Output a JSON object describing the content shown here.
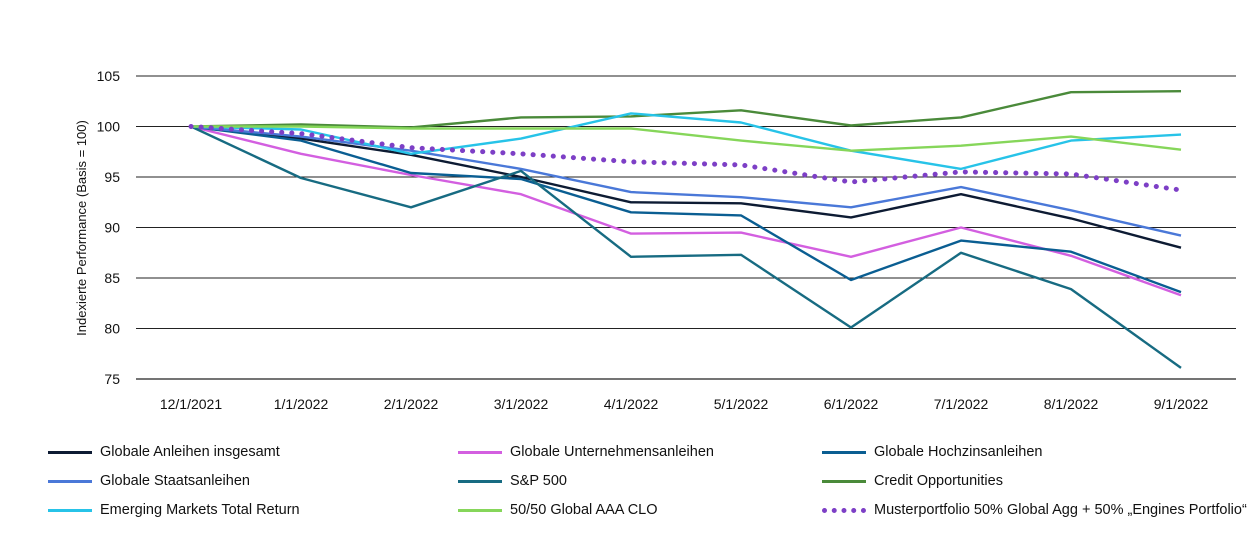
{
  "chart_data": {
    "type": "line",
    "x": [
      "12/1/2021",
      "1/1/2022",
      "2/1/2022",
      "3/1/2022",
      "4/1/2022",
      "5/1/2022",
      "6/1/2022",
      "7/1/2022",
      "8/1/2022",
      "9/1/2022"
    ],
    "ylabel": "Indexierte Performance (Basis = 100)",
    "ylim": [
      75,
      105
    ],
    "yticks": [
      75,
      80,
      85,
      90,
      95,
      100,
      105
    ],
    "grid": "horizontal",
    "legend_position": "bottom",
    "series": [
      {
        "name": "Globale Anleihen insgesamt",
        "color": "#0d1b33",
        "style": "solid",
        "values": [
          100,
          98.8,
          97.2,
          95.0,
          92.5,
          92.4,
          91.0,
          93.3,
          90.9,
          88.0
        ]
      },
      {
        "name": "Globale Unternehmensanleihen",
        "color": "#d35fe0",
        "style": "solid",
        "values": [
          100,
          97.3,
          95.2,
          93.3,
          89.4,
          89.5,
          87.1,
          90.0,
          87.2,
          83.3
        ]
      },
      {
        "name": "Globale Hochzinsanleihen",
        "color": "#0a5e92",
        "style": "solid",
        "values": [
          100,
          98.6,
          95.4,
          94.8,
          91.5,
          91.2,
          84.8,
          88.7,
          87.6,
          83.6
        ]
      },
      {
        "name": "Globale Staatsanleihen",
        "color": "#4a78d8",
        "style": "solid",
        "values": [
          100,
          99.0,
          97.6,
          95.8,
          93.5,
          93.0,
          92.0,
          94.0,
          91.7,
          89.2
        ]
      },
      {
        "name": "S&P 500",
        "color": "#176b82",
        "style": "solid",
        "values": [
          100,
          94.9,
          92.0,
          95.6,
          87.1,
          87.3,
          80.1,
          87.5,
          83.9,
          76.1
        ]
      },
      {
        "name": "Credit Opportunities",
        "color": "#4a8a3a",
        "style": "solid",
        "values": [
          100,
          100.2,
          99.9,
          100.9,
          101.0,
          101.6,
          100.1,
          100.9,
          103.4,
          103.5
        ]
      },
      {
        "name": "Emerging Markets Total Return",
        "color": "#27c3e8",
        "style": "solid",
        "values": [
          100,
          99.7,
          97.3,
          98.8,
          101.3,
          100.4,
          97.6,
          95.8,
          98.6,
          99.2
        ]
      },
      {
        "name": "50/50 Global AAA CLO",
        "color": "#86d65a",
        "style": "solid",
        "values": [
          100,
          100.0,
          99.8,
          99.8,
          99.8,
          98.6,
          97.6,
          98.1,
          99.0,
          97.7
        ]
      },
      {
        "name": "Musterportfolio 50% Global Agg + 50% „Engines Portfolio“",
        "color": "#7d3fc6",
        "style": "dotted",
        "values": [
          100,
          99.3,
          97.9,
          97.3,
          96.5,
          96.2,
          94.5,
          95.5,
          95.3,
          93.7
        ]
      }
    ]
  }
}
